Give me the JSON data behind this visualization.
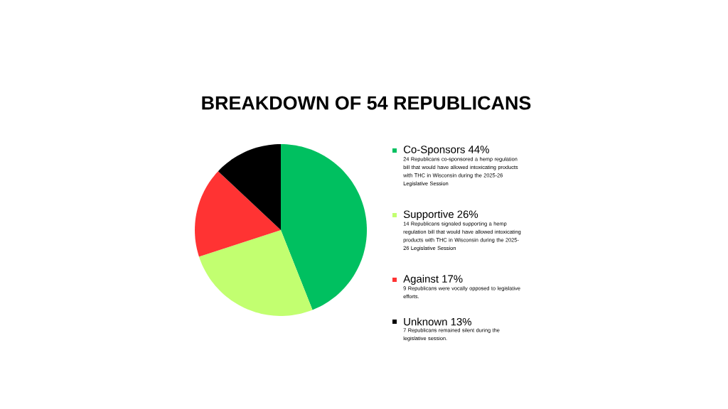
{
  "chart_data": {
    "type": "pie",
    "title": "BREAKDOWN OF 54 REPUBLICANS",
    "categories": [
      "Co-Sponsors 44%",
      "Supportive 26%",
      "Against 17%",
      "Unknown 13%"
    ],
    "values": [
      44,
      26,
      17,
      13
    ],
    "colors": [
      "#00c060",
      "#c2ff70",
      "#ff3333",
      "#000000"
    ],
    "legend": "right",
    "annotations": [
      "24 Republicans co-sponsored a hemp regulation bill that would have allowed intoxicating products with THC in Wisconsin during the 2025-26 Legislative Session",
      "14 Republicans signaled supporting a hemp regulation bill that would have allowed intoxicating products with THC in Wisconsin during the 2025-26 Legislative Session",
      "9 Republicans were vocally opposed to legislative efforts.",
      "7 Republicans remained silent during the legislative session."
    ]
  }
}
